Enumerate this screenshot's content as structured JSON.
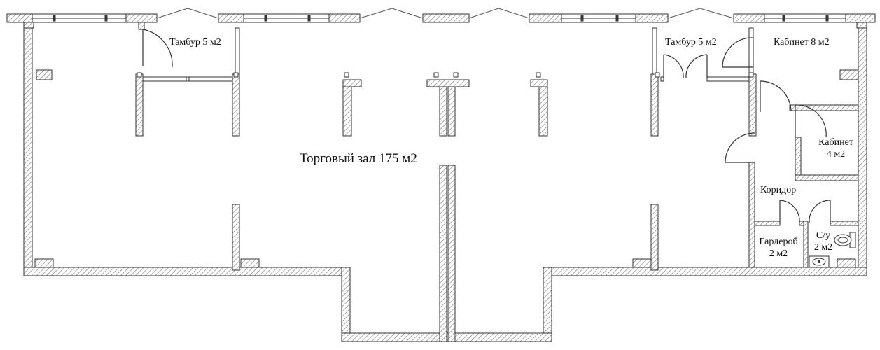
{
  "rooms": {
    "sales_hall": "Торговый зал 175 м2",
    "vestibule_left": "Тамбур 5 м2",
    "vestibule_right": "Тамбур 5 м2",
    "office_8": "Кабинет 8 м2",
    "office_4_line1": "Кабинет",
    "office_4_line2": "4 м2",
    "corridor": "Коридор",
    "wardrobe_line1": "Гардероб",
    "wardrobe_line2": "2 м2",
    "wc_line1": "С/у",
    "wc_line2": "2 м2"
  },
  "colors": {
    "wall_stroke": "#333333",
    "hatch": "#777777",
    "background": "#ffffff"
  }
}
